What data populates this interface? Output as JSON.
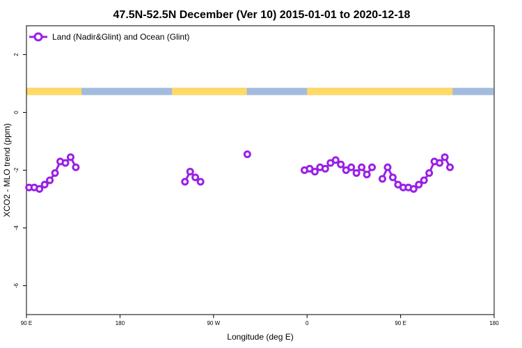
{
  "chart_data": {
    "type": "line",
    "title": "47.5N-52.5N December (Ver 10)   2015-01-01 to 2020-12-18",
    "xlabel": "Longitude (deg E)",
    "ylabel": "XCO2 - MLO trend (ppm)",
    "xlim": [
      90,
      540
    ],
    "ylim": [
      -7,
      3
    ],
    "x_ticks": [
      {
        "value": 90,
        "label": "90 E"
      },
      {
        "value": 180,
        "label": "180"
      },
      {
        "value": 270,
        "label": "90 W"
      },
      {
        "value": 360,
        "label": "0"
      },
      {
        "value": 450,
        "label": "90 E"
      },
      {
        "value": 540,
        "label": "180"
      }
    ],
    "y_ticks": [
      {
        "value": 2,
        "label": "2"
      },
      {
        "value": 0,
        "label": "0"
      },
      {
        "value": -2,
        "label": "-2"
      },
      {
        "value": -4,
        "label": "-4"
      },
      {
        "value": -6,
        "label": "-6"
      }
    ],
    "series": [
      {
        "name": "Land (Nadir&Glint) and Ocean (Glint)",
        "color": "#9a1fe6",
        "segments": [
          [
            [
              92.5,
              -2.6
            ],
            [
              97.5,
              -2.6
            ],
            [
              102.5,
              -2.65
            ],
            [
              107.5,
              -2.5
            ],
            [
              112.5,
              -2.35
            ],
            [
              117.5,
              -2.1
            ],
            [
              122.5,
              -1.7
            ],
            [
              127.5,
              -1.75
            ],
            [
              132.5,
              -1.55
            ],
            [
              137.5,
              -1.9
            ]
          ],
          [
            [
              242.5,
              -2.4
            ],
            [
              247.5,
              -2.05
            ],
            [
              252.5,
              -2.25
            ],
            [
              257.5,
              -2.4
            ]
          ],
          [
            [
              302.5,
              -1.45
            ]
          ],
          [
            [
              357.5,
              -2.0
            ],
            [
              362.5,
              -1.95
            ],
            [
              367.5,
              -2.05
            ],
            [
              372.5,
              -1.9
            ],
            [
              377.5,
              -1.95
            ],
            [
              382.5,
              -1.75
            ],
            [
              387.5,
              -1.65
            ],
            [
              392.5,
              -1.8
            ],
            [
              397.5,
              -2.0
            ],
            [
              402.5,
              -1.9
            ],
            [
              407.5,
              -2.1
            ],
            [
              412.5,
              -1.9
            ],
            [
              417.5,
              -2.15
            ],
            [
              422.5,
              -1.9
            ]
          ],
          [
            [
              432.5,
              -2.3
            ],
            [
              437.5,
              -1.9
            ],
            [
              442.5,
              -2.25
            ],
            [
              447.5,
              -2.5
            ],
            [
              452.5,
              -2.6
            ],
            [
              457.5,
              -2.6
            ],
            [
              462.5,
              -2.65
            ],
            [
              467.5,
              -2.5
            ],
            [
              472.5,
              -2.35
            ],
            [
              477.5,
              -2.1
            ],
            [
              482.5,
              -1.7
            ],
            [
              487.5,
              -1.75
            ],
            [
              492.5,
              -1.55
            ],
            [
              497.5,
              -1.9
            ]
          ]
        ]
      }
    ],
    "land_ocean_band": {
      "y_range": [
        0.6,
        0.85
      ],
      "land_color": "#ffd966",
      "ocean_color": "#a3bbdd",
      "land_spans": [
        [
          90,
          143
        ],
        [
          230,
          302
        ],
        [
          360,
          500
        ]
      ],
      "legend_position": "top-left"
    }
  }
}
